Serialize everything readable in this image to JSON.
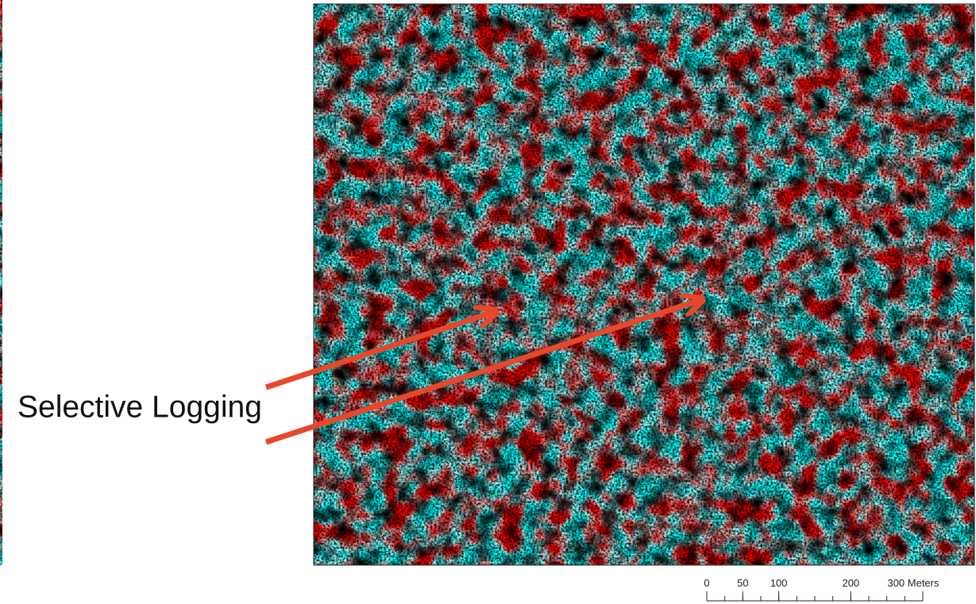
{
  "annotation": "Selective Logging",
  "scale_bar": {
    "ticks": [
      0,
      50,
      100,
      200,
      {
        "value": 300,
        "label": "300 Meters"
      }
    ],
    "range": [
      0,
      300
    ]
  }
}
